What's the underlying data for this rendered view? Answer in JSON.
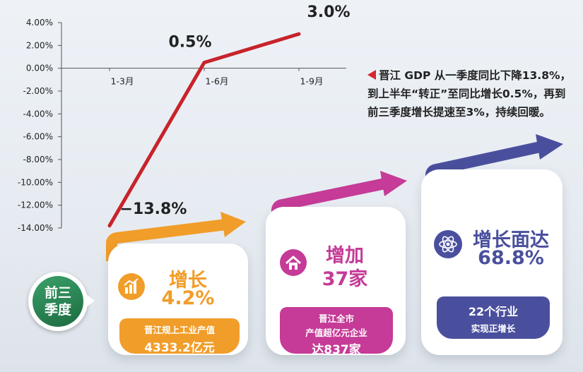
{
  "chart_data": {
    "type": "line",
    "categories": [
      "1-3月",
      "1-6月",
      "1-9月"
    ],
    "values": [
      -13.8,
      0.5,
      3.0
    ],
    "value_labels": [
      "−13.8%",
      "0.5%",
      "3.0%"
    ],
    "ylim": [
      -14,
      4
    ],
    "yticks": [
      "4.00%",
      "2.00%",
      "0.00%",
      "-2.00%",
      "-4.00%",
      "-6.00%",
      "-8.00%",
      "-10.00%",
      "-12.00%",
      "-14.00%"
    ],
    "line_color": "#c8232b",
    "grid": false
  },
  "note": "晋江 GDP 从一季度同比下降13.8%，到上半年“转正”至同比增长0.5%，再到前三季度增长提速至3%，持续回暖。",
  "badge": {
    "line1": "前三",
    "line2": "季度"
  },
  "cards": [
    {
      "title": "增长",
      "value": "4.2%",
      "ribbon_line1": "晋江规上工业产值",
      "ribbon_line2": "4333.2亿元",
      "color": "#f19d2a",
      "icon": "bar-chart-icon"
    },
    {
      "title": "增加",
      "value": "37家",
      "ribbon_line1": "晋江全市",
      "ribbon_line2": "产值超亿元企业",
      "ribbon_line3": "达837家",
      "color": "#c53b97",
      "icon": "home-icon"
    },
    {
      "title": "增长面达",
      "value": "68.8%",
      "ribbon_line1": "22个行业",
      "ribbon_line2": "实现正增长",
      "color": "#4a4f9d",
      "icon": "atom-icon"
    }
  ]
}
